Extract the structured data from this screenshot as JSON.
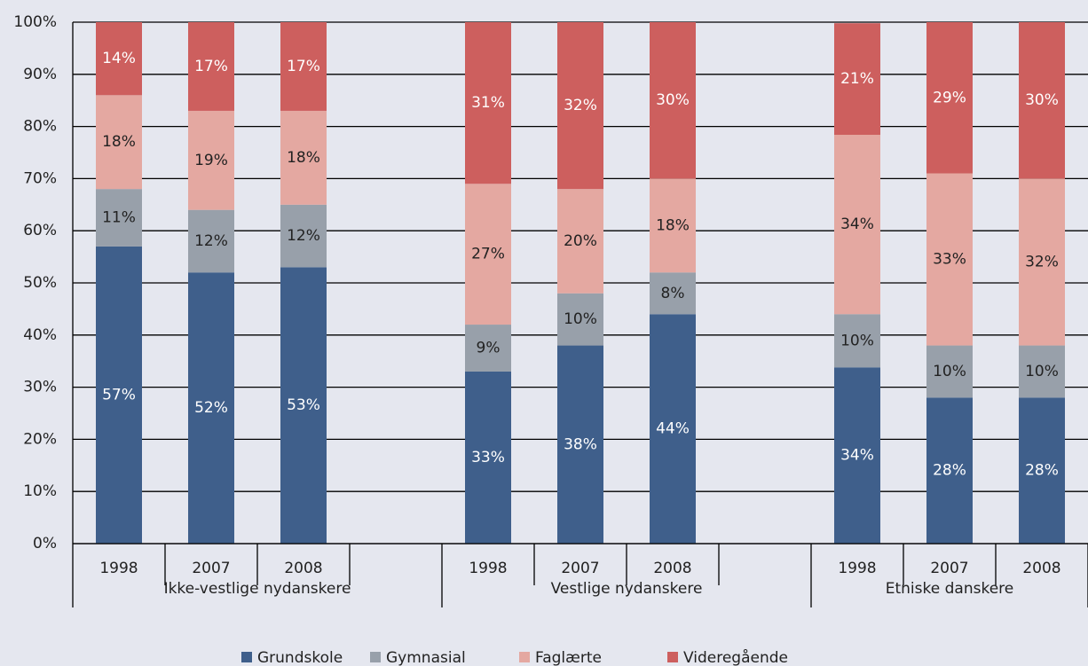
{
  "chart_data": {
    "type": "stacked_bar",
    "categories": [
      "1998",
      "2007",
      "2008",
      "1998",
      "2007",
      "2008",
      "1998",
      "2007",
      "2008"
    ],
    "groups": [
      "Ikke-vestlige nydanskere",
      "Vestlige nydanskere",
      "Etniske danskere"
    ],
    "series": [
      {
        "name": "Grundskole",
        "color": "#3f5f8b",
        "values": [
          57,
          52,
          53,
          33,
          38,
          44,
          33.8,
          28,
          28
        ],
        "value_labels": [
          "57%",
          "52%",
          "53%",
          "33%",
          "38%",
          "44%",
          "34%",
          "28%",
          "28%"
        ]
      },
      {
        "name": "Gymnasial",
        "color": "#98a0aa",
        "values": [
          11,
          12,
          12,
          9,
          10,
          8,
          10.2,
          10,
          10
        ],
        "value_labels": [
          "11%",
          "12%",
          "12%",
          "9%",
          "10%",
          "8%",
          "10%",
          "10%",
          "10%"
        ]
      },
      {
        "name": "Faglærte",
        "color": "#e4a8a1",
        "values": [
          18,
          19,
          18,
          27,
          20,
          18,
          34.4,
          33,
          32
        ],
        "value_labels": [
          "18%",
          "19%",
          "18%",
          "27%",
          "20%",
          "18%",
          "34%",
          "33%",
          "32%"
        ]
      },
      {
        "name": "Videregående",
        "color": "#cd5f5e",
        "values": [
          14,
          17,
          17,
          31,
          32,
          30,
          21.4,
          29,
          30
        ],
        "value_labels": [
          "14%",
          "17%",
          "17%",
          "31%",
          "32%",
          "30%",
          "21%",
          "29%",
          "30%"
        ]
      }
    ],
    "ylim": [
      0,
      100
    ],
    "yticks": [
      {
        "value": 0,
        "label": "0%"
      },
      {
        "value": 10,
        "label": "10%"
      },
      {
        "value": 20,
        "label": "20%"
      },
      {
        "value": 30,
        "label": "30%"
      },
      {
        "value": 40,
        "label": "40%"
      },
      {
        "value": 50,
        "label": "50%"
      },
      {
        "value": 60,
        "label": "60%"
      },
      {
        "value": 70,
        "label": "70%"
      },
      {
        "value": 80,
        "label": "80%"
      },
      {
        "value": 90,
        "label": "90%"
      },
      {
        "value": 100,
        "label": "100%"
      }
    ],
    "grid": true,
    "legend": "bottom"
  }
}
